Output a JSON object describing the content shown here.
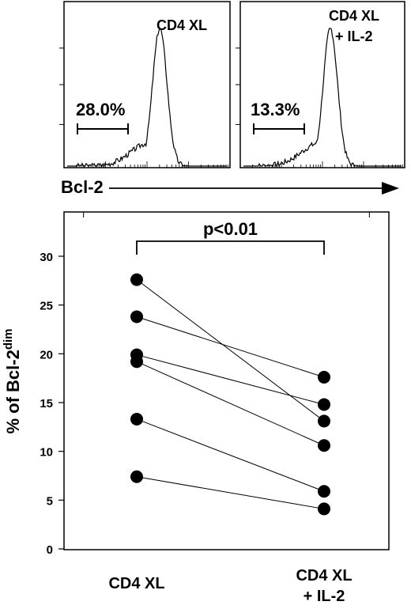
{
  "chart_data": [
    {
      "type": "histogram",
      "panel": "top-left",
      "label": "CD4 XL",
      "gate_percent": "28.0%",
      "xlabel": "Bcl-2",
      "x_scale": "log",
      "peak_position": 0.58
    },
    {
      "type": "histogram",
      "panel": "top-right",
      "label_lines": [
        "CD4 XL",
        "+ IL-2"
      ],
      "gate_percent": "13.3%",
      "peak_position": 0.55
    },
    {
      "type": "scatter",
      "panel": "bottom",
      "categories": [
        "CD4 XL",
        "CD4 XL\n+ IL-2"
      ],
      "category_lines": [
        [
          "CD4 XL"
        ],
        [
          "CD4 XL",
          "+ IL-2"
        ]
      ],
      "ylabel_main": "% of Bcl-2",
      "ylabel_sup": "dim",
      "ylim": [
        0,
        32
      ],
      "yticks": [
        0,
        5,
        10,
        15,
        20,
        25,
        30
      ],
      "annotation": "p<0.01",
      "pairs": [
        [
          27.6,
          13.1
        ],
        [
          23.8,
          17.6
        ],
        [
          19.9,
          14.8
        ],
        [
          19.2,
          10.6
        ],
        [
          13.3,
          5.9
        ],
        [
          7.4,
          4.1
        ]
      ],
      "connecting_lines": [
        [
          27.6,
          13.1
        ],
        [
          23.8,
          17.6
        ],
        [
          19.9,
          14.8
        ],
        [
          19.2,
          10.6
        ],
        [
          13.3,
          5.9
        ],
        [
          7.4,
          4.1
        ]
      ]
    }
  ]
}
